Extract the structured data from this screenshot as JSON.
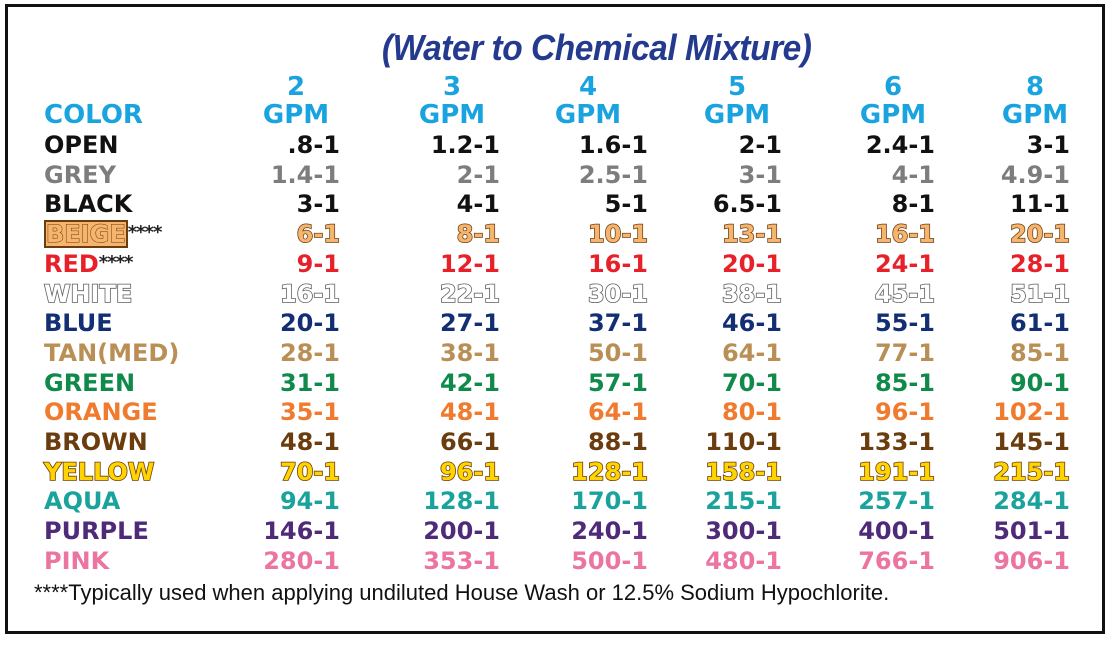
{
  "title": "(Water to Chemical Mixture)",
  "header": {
    "color_label": "COLOR",
    "columns": [
      {
        "gpm": "2",
        "unit": "GPM"
      },
      {
        "gpm": "3",
        "unit": "GPM"
      },
      {
        "gpm": "4",
        "unit": "GPM"
      },
      {
        "gpm": "5",
        "unit": "GPM"
      },
      {
        "gpm": "6",
        "unit": "GPM"
      },
      {
        "gpm": "8",
        "unit": "GPM"
      }
    ]
  },
  "rows": [
    {
      "label": "OPEN",
      "suffix": "",
      "color": "#111111",
      "style": "plain",
      "values": [
        ".8-1",
        "1.2-1",
        "1.6-1",
        "2-1",
        "2.4-1",
        "3-1"
      ]
    },
    {
      "label": "GREY",
      "suffix": "",
      "color": "#7d7d7d",
      "style": "plain",
      "values": [
        "1.4-1",
        "2-1",
        "2.5-1",
        "3-1",
        "4-1",
        "4.9-1"
      ]
    },
    {
      "label": "BLACK",
      "suffix": "",
      "color": "#111111",
      "style": "plain",
      "values": [
        "3-1",
        "4-1",
        "5-1",
        "6.5-1",
        "8-1",
        "11-1"
      ]
    },
    {
      "label": "BEIGE",
      "suffix": "****",
      "color": "#f5b56e",
      "style": "beige",
      "values": [
        "6-1",
        "8-1",
        "10-1",
        "13-1",
        "16-1",
        "20-1"
      ]
    },
    {
      "label": "RED",
      "suffix": "****",
      "color": "#e8202a",
      "style": "plain",
      "values": [
        "9-1",
        "12-1",
        "16-1",
        "20-1",
        "24-1",
        "28-1"
      ]
    },
    {
      "label": "WHITE",
      "suffix": "",
      "color": "#ffffff",
      "style": "white",
      "values": [
        "16-1",
        "22-1",
        "30-1",
        "38-1",
        "45-1",
        "51-1"
      ]
    },
    {
      "label": "BLUE",
      "suffix": "",
      "color": "#132f73",
      "style": "plain",
      "values": [
        "20-1",
        "27-1",
        "37-1",
        "46-1",
        "55-1",
        "61-1"
      ]
    },
    {
      "label": "TAN(MED)",
      "suffix": "",
      "color": "#b98f55",
      "style": "plain",
      "values": [
        "28-1",
        "38-1",
        "50-1",
        "64-1",
        "77-1",
        "85-1"
      ]
    },
    {
      "label": "GREEN",
      "suffix": "",
      "color": "#0f8a4a",
      "style": "plain",
      "values": [
        "31-1",
        "42-1",
        "57-1",
        "70-1",
        "85-1",
        "90-1"
      ]
    },
    {
      "label": "ORANGE",
      "suffix": "",
      "color": "#f07a2d",
      "style": "plain",
      "values": [
        "35-1",
        "48-1",
        "64-1",
        "80-1",
        "96-1",
        "102-1"
      ]
    },
    {
      "label": "BROWN",
      "suffix": "",
      "color": "#6b3c0d",
      "style": "plain",
      "values": [
        "48-1",
        "66-1",
        "88-1",
        "110-1",
        "133-1",
        "145-1"
      ]
    },
    {
      "label": "YELLOW",
      "suffix": "",
      "color": "#ffd400",
      "style": "yellow",
      "values": [
        "70-1",
        "96-1",
        "128-1",
        "158-1",
        "191-1",
        "215-1"
      ]
    },
    {
      "label": "AQUA",
      "suffix": "",
      "color": "#1aa39c",
      "style": "plain",
      "values": [
        "94-1",
        "128-1",
        "170-1",
        "215-1",
        "257-1",
        "284-1"
      ]
    },
    {
      "label": "PURPLE",
      "suffix": "",
      "color": "#4f2a79",
      "style": "plain",
      "values": [
        "146-1",
        "200-1",
        "240-1",
        "300-1",
        "400-1",
        "501-1"
      ]
    },
    {
      "label": "PINK",
      "suffix": "",
      "color": "#ec74a0",
      "style": "plain",
      "values": [
        "280-1",
        "353-1",
        "500-1",
        "480-1",
        "766-1",
        "906-1"
      ]
    }
  ],
  "footnote": "****Typically used when applying undiluted House Wash or 12.5% Sodium Hypochlorite."
}
